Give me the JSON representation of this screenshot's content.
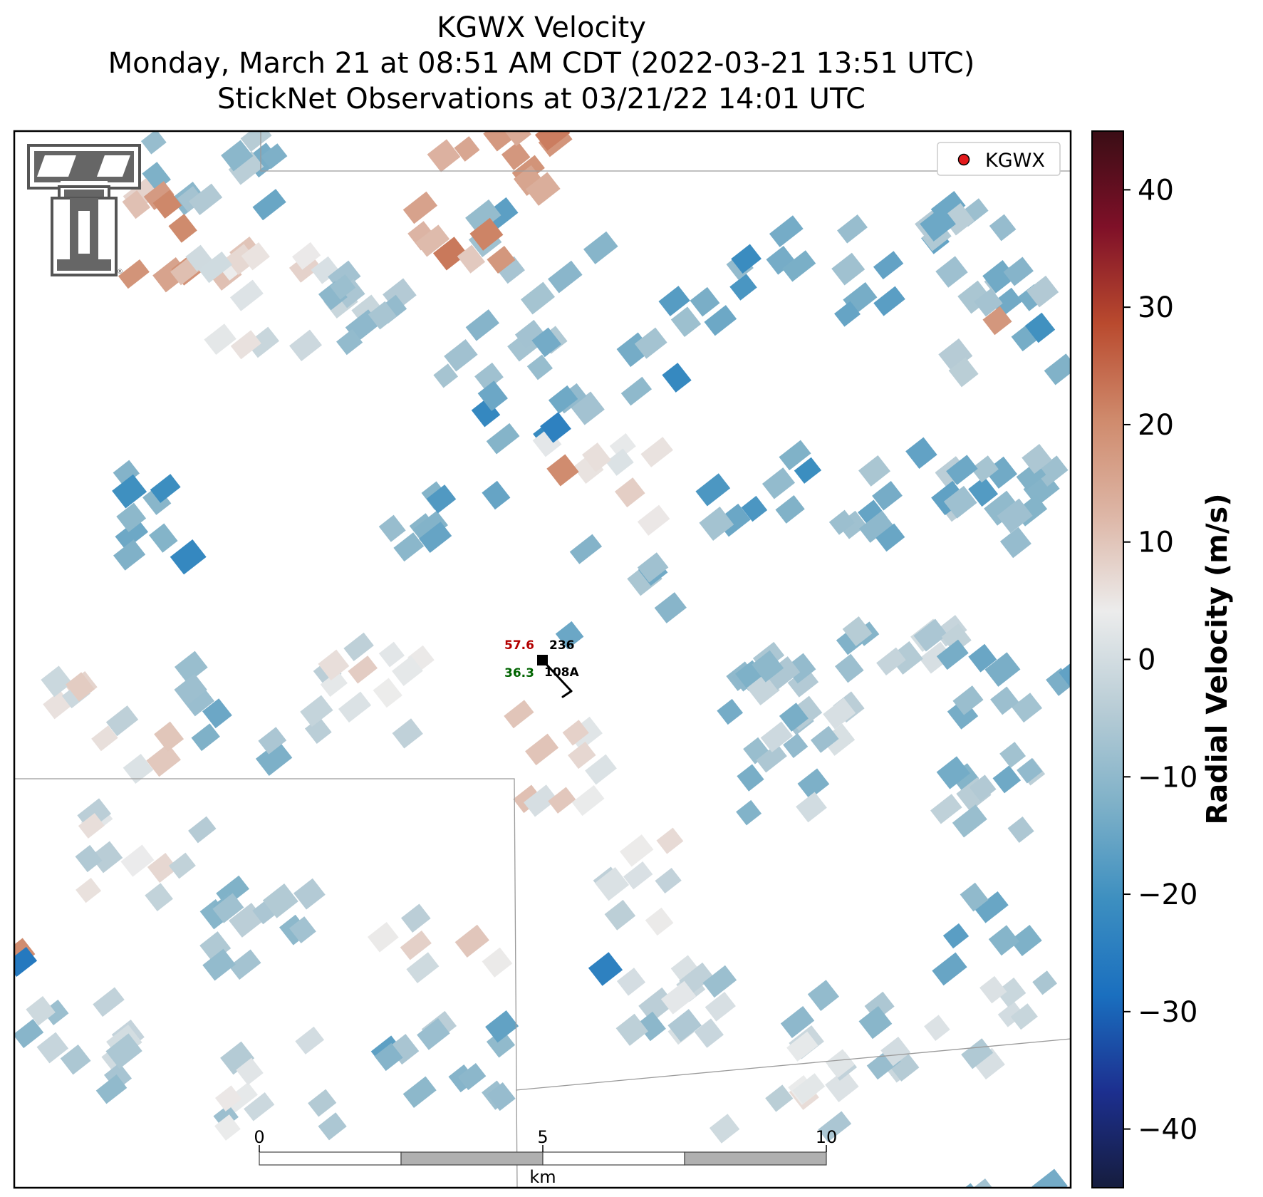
{
  "title": {
    "line1": "KGWX Velocity",
    "line2": "Monday, March 21 at 08:51 AM CDT (2022-03-21 13:51 UTC)",
    "line3": "StickNet Observations at 03/21/22 14:01 UTC"
  },
  "legend": {
    "label": "KGWX",
    "marker_color": "#e31a1c",
    "placement": "upper-right"
  },
  "logo": {
    "name": "Texas Tech Double T logo",
    "color": "#555555"
  },
  "station": {
    "temperature": "57.6",
    "temperature_color": "#b30000",
    "pressure": "236",
    "dewpoint": "36.3",
    "dewpoint_color": "#006400",
    "station_id": "108A",
    "wind_direction": "NW",
    "marker_color": "#000000"
  },
  "scale_bar": {
    "ticks": [
      "0",
      "5",
      "10"
    ],
    "unit": "km",
    "segment_colors": [
      "#ffffff",
      "#b0b0b0",
      "#ffffff",
      "#b0b0b0"
    ]
  },
  "colorbar": {
    "label": "Radial Velocity (m/s)",
    "min": -45,
    "max": 45,
    "ticks": [
      "40",
      "30",
      "20",
      "10",
      "0",
      "−10",
      "−20",
      "−30",
      "−40"
    ],
    "tick_values": [
      40,
      30,
      20,
      10,
      0,
      -10,
      -20,
      -30,
      -40
    ],
    "stops": [
      "#161d3e",
      "#1c2f8f",
      "#1a6fbf",
      "#3d8fc0",
      "#7fb1c8",
      "#b9cdd6",
      "#ececec",
      "#ddb6a6",
      "#cf8a6c",
      "#b94a2e",
      "#7f1028",
      "#3a0d15"
    ]
  }
}
